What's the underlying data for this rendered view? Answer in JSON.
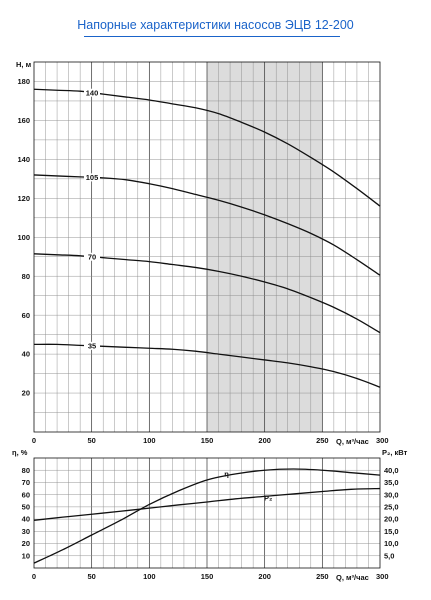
{
  "title": "Напорные характеристики насосов ЭЦВ 12-200",
  "chart_data": [
    {
      "type": "line",
      "xlabel": "Q, м³/час",
      "ylabel": "H, м",
      "xlim": [
        0,
        300
      ],
      "ylim": [
        0,
        190
      ],
      "x_ticks": [
        "0",
        "50",
        "100",
        "150",
        "200",
        "250",
        "300"
      ],
      "y_ticks": [
        "20",
        "40",
        "60",
        "80",
        "100",
        "120",
        "140",
        "160",
        "180"
      ],
      "grid": true,
      "working_zone": [
        150,
        250
      ],
      "series": [
        {
          "name": "140",
          "x": [
            0,
            20,
            40,
            60,
            80,
            100,
            120,
            140,
            160,
            180,
            200,
            220,
            240,
            260,
            280,
            300
          ],
          "y": [
            176,
            175.5,
            175,
            173.5,
            172,
            170.5,
            168.5,
            166.5,
            163.5,
            159,
            154,
            148,
            141,
            133.5,
            125,
            116
          ]
        },
        {
          "name": "105",
          "x": [
            0,
            20,
            40,
            60,
            80,
            100,
            120,
            140,
            160,
            180,
            200,
            220,
            240,
            260,
            280,
            300
          ],
          "y": [
            132,
            131.5,
            131,
            130.5,
            129.5,
            127.5,
            125,
            122,
            119,
            115.5,
            111.5,
            107,
            102,
            96,
            88.5,
            80.5
          ]
        },
        {
          "name": "70",
          "x": [
            0,
            20,
            40,
            60,
            80,
            100,
            120,
            140,
            160,
            180,
            200,
            220,
            240,
            260,
            280,
            300
          ],
          "y": [
            91.5,
            91,
            90.5,
            89.5,
            88.5,
            87.5,
            86,
            84.5,
            82.5,
            80,
            77,
            73.5,
            69,
            64,
            58,
            51
          ]
        },
        {
          "name": "35",
          "x": [
            0,
            20,
            40,
            60,
            80,
            100,
            120,
            140,
            160,
            180,
            200,
            220,
            240,
            260,
            280,
            300
          ],
          "y": [
            45,
            45,
            44.5,
            44,
            43.5,
            43,
            42.5,
            41.5,
            40,
            38.5,
            37,
            35.5,
            33.5,
            31,
            27.5,
            23
          ]
        }
      ]
    },
    {
      "type": "line",
      "xlabel": "Q, м³/час",
      "ylabel": "η, %",
      "y2label": "P₂, кВт",
      "xlim": [
        0,
        300
      ],
      "ylim": [
        0,
        90
      ],
      "y2lim": [
        0,
        45
      ],
      "x_ticks": [
        "0",
        "50",
        "100",
        "150",
        "200",
        "250",
        "300"
      ],
      "y_ticks": [
        "10",
        "20",
        "30",
        "40",
        "50",
        "60",
        "70",
        "80"
      ],
      "y2_ticks": [
        "5,0",
        "10,0",
        "15,0",
        "20,0",
        "25,0",
        "30,0",
        "35,0",
        "40,0"
      ],
      "grid": true,
      "series": [
        {
          "name": "η",
          "axis": "left",
          "x": [
            0,
            25,
            50,
            75,
            100,
            125,
            150,
            175,
            200,
            225,
            250,
            275,
            300
          ],
          "y": [
            4,
            15,
            27,
            39,
            52,
            63,
            72,
            77,
            80,
            81,
            80,
            78,
            76
          ]
        },
        {
          "name": "P₂",
          "axis": "right",
          "x": [
            0,
            25,
            50,
            75,
            100,
            125,
            150,
            175,
            200,
            225,
            250,
            275,
            300
          ],
          "y": [
            19.5,
            20.8,
            22.0,
            23.2,
            24.5,
            25.8,
            27.0,
            28.3,
            29.3,
            30.3,
            31.3,
            32.2,
            32.5
          ]
        }
      ]
    }
  ]
}
